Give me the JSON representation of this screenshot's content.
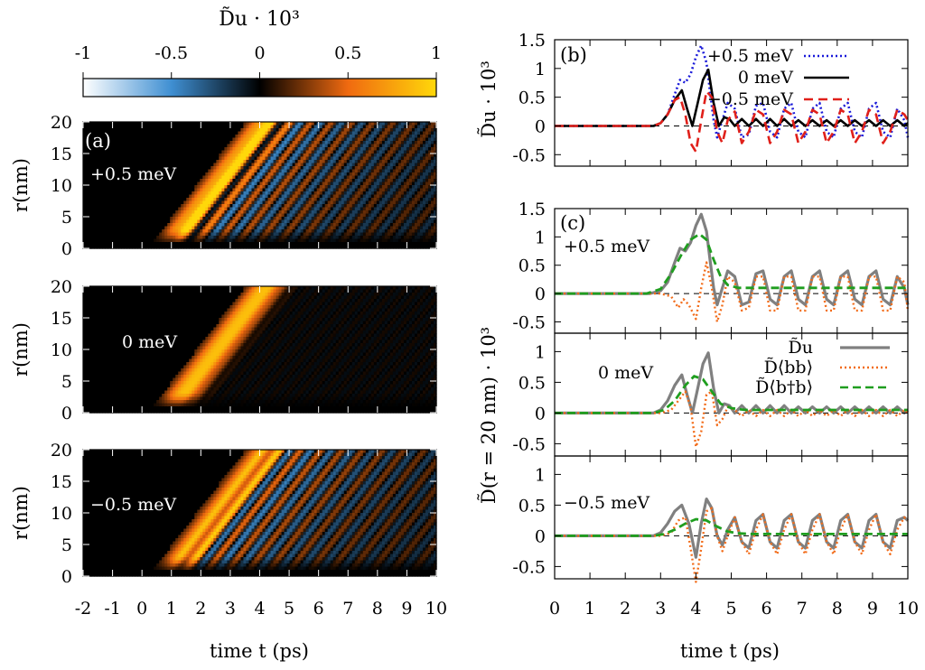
{
  "chart_data": {
    "colorbar": {
      "label": "D̃u · 10³",
      "ticks": [
        "-1",
        "-0.5",
        "0",
        "0.5",
        "1"
      ],
      "range": [
        -1,
        1
      ],
      "colors": [
        "#ffffff",
        "#3f8fd2",
        "#000000",
        "#f06a10",
        "#ffd80a"
      ]
    },
    "heatmaps": {
      "type": "heatmap",
      "panel_label": "(a)",
      "xlabel": "time t (ps)",
      "ylabel": "r(nm)",
      "xlim": [
        -2,
        10
      ],
      "ylim": [
        0,
        20
      ],
      "x_ticks": [
        "-2",
        "-1",
        "0",
        "1",
        "2",
        "3",
        "4",
        "5",
        "6",
        "7",
        "8",
        "9",
        "10"
      ],
      "y_ticks": [
        "0",
        "5",
        "10",
        "15",
        "20"
      ],
      "panels": [
        {
          "label": "+0.5 meV",
          "detuning_meV": 0.5
        },
        {
          "label": "0 meV",
          "detuning_meV": 0.0
        },
        {
          "label": "−0.5 meV",
          "detuning_meV": -0.5
        }
      ]
    },
    "panel_b": {
      "type": "line",
      "panel_label": "(b)",
      "ylabel": "D̃u · 10³",
      "xlim": [
        0,
        10
      ],
      "ylim": [
        -0.7,
        1.5
      ],
      "y_ticks": [
        "-0.5",
        "0",
        "0.5",
        "1",
        "1.5"
      ],
      "series": [
        {
          "name": "+0.5 meV",
          "color": "#1a1ad9",
          "x": [
            0,
            2.8,
            3.0,
            3.2,
            3.4,
            3.55,
            3.7,
            3.85,
            4.0,
            4.15,
            4.3,
            4.4,
            4.5,
            4.6,
            4.75,
            4.9,
            5.1,
            5.3,
            5.5,
            5.7,
            5.9,
            6.1,
            6.3,
            6.5,
            6.7,
            6.9,
            7.1,
            7.3,
            7.5,
            7.7,
            7.9,
            8.1,
            8.3,
            8.5,
            8.7,
            8.9,
            9.1,
            9.3,
            9.5,
            9.7,
            9.9,
            10.0
          ],
          "y": [
            0,
            0,
            0.05,
            0.2,
            0.55,
            0.8,
            0.75,
            0.9,
            1.2,
            1.4,
            1.1,
            0.6,
            0.1,
            -0.2,
            0.1,
            0.4,
            0.3,
            -0.2,
            -0.15,
            0.35,
            0.4,
            -0.1,
            -0.2,
            0.3,
            0.4,
            -0.1,
            -0.2,
            0.3,
            0.4,
            -0.1,
            -0.2,
            0.3,
            0.4,
            -0.1,
            -0.2,
            0.3,
            0.4,
            -0.1,
            -0.2,
            0.3,
            0.1,
            -0.2
          ]
        },
        {
          "name": "0 meV",
          "color": "#000000",
          "x": [
            0,
            2.8,
            3.0,
            3.2,
            3.4,
            3.6,
            3.75,
            3.9,
            4.05,
            4.2,
            4.35,
            4.5,
            4.65,
            4.8,
            4.95,
            5.1,
            5.3,
            5.5,
            5.7,
            5.9,
            6.1,
            6.3,
            6.5,
            6.7,
            6.9,
            7.1,
            7.3,
            7.5,
            7.7,
            7.9,
            8.1,
            8.3,
            8.5,
            8.7,
            8.9,
            9.1,
            9.3,
            9.5,
            9.7,
            9.9,
            10.0
          ],
          "y": [
            0,
            0,
            0.05,
            0.2,
            0.45,
            0.62,
            0.3,
            0.0,
            0.4,
            0.8,
            0.98,
            0.4,
            0.0,
            0.15,
            0.12,
            0.0,
            0.12,
            0.0,
            0.12,
            0.0,
            0.12,
            0.0,
            0.12,
            0.0,
            0.1,
            0.0,
            0.1,
            0.0,
            0.1,
            0.0,
            0.1,
            0.0,
            0.1,
            0.0,
            0.1,
            0.0,
            0.1,
            0.0,
            0.1,
            0.0,
            0.05
          ]
        },
        {
          "name": "−0.5 meV",
          "color": "#e0201a",
          "x": [
            0,
            2.8,
            3.0,
            3.2,
            3.4,
            3.55,
            3.7,
            3.85,
            4.0,
            4.15,
            4.3,
            4.45,
            4.6,
            4.75,
            4.9,
            5.1,
            5.3,
            5.5,
            5.7,
            5.9,
            6.1,
            6.3,
            6.5,
            6.7,
            6.9,
            7.1,
            7.3,
            7.5,
            7.7,
            7.9,
            8.1,
            8.3,
            8.5,
            8.7,
            8.9,
            9.1,
            9.3,
            9.5,
            9.7,
            9.9,
            10.0
          ],
          "y": [
            0,
            0,
            0.05,
            0.2,
            0.45,
            0.5,
            0.2,
            -0.3,
            -0.45,
            0.1,
            0.6,
            0.5,
            -0.1,
            -0.3,
            0.1,
            0.25,
            -0.3,
            -0.1,
            0.28,
            0.2,
            -0.3,
            -0.1,
            0.28,
            0.2,
            -0.3,
            -0.1,
            0.28,
            0.2,
            -0.3,
            -0.1,
            0.28,
            0.2,
            -0.3,
            -0.1,
            0.28,
            0.2,
            -0.3,
            -0.1,
            0.28,
            0.2,
            0.1
          ]
        }
      ]
    },
    "panel_c": {
      "type": "line",
      "panel_label": "(c)",
      "xlabel": "time t (ps)",
      "ylabel": "D̃(r = 20 nm) · 10³",
      "xlim": [
        0,
        10
      ],
      "x_ticks": [
        "0",
        "1",
        "2",
        "3",
        "4",
        "5",
        "6",
        "7",
        "8",
        "9",
        "10"
      ],
      "ylim": [
        -0.7,
        1.5
      ],
      "legend": [
        "D̃u",
        "D̃⟨bb⟩",
        "D̃⟨b†b⟩"
      ],
      "colors": {
        "u": "#808080",
        "bb": "#f26c1a",
        "bdb": "#1f9e1f"
      },
      "subpanels": [
        {
          "label": "+0.5 meV",
          "y_ticks": [
            "-0.5",
            "0",
            "0.5",
            "1",
            "1.5"
          ],
          "u": {
            "x": [
              0,
              2.7,
              3.0,
              3.2,
              3.4,
              3.55,
              3.7,
              3.85,
              4.0,
              4.15,
              4.3,
              4.4,
              4.5,
              4.6,
              4.75,
              4.9,
              5.1,
              5.3,
              5.5,
              5.7,
              5.9,
              6.1,
              6.3,
              6.5,
              6.7,
              6.9,
              7.1,
              7.3,
              7.5,
              7.7,
              7.9,
              8.1,
              8.3,
              8.5,
              8.7,
              8.9,
              9.1,
              9.3,
              9.5,
              9.7,
              9.9,
              10.0
            ],
            "y": [
              0,
              0,
              0.05,
              0.2,
              0.55,
              0.8,
              0.75,
              0.9,
              1.2,
              1.4,
              1.1,
              0.6,
              0.1,
              -0.2,
              0.1,
              0.4,
              0.3,
              -0.2,
              -0.15,
              0.35,
              0.4,
              -0.1,
              -0.2,
              0.3,
              0.4,
              -0.1,
              -0.2,
              0.3,
              0.4,
              -0.1,
              -0.2,
              0.3,
              0.4,
              -0.1,
              -0.2,
              0.3,
              0.4,
              -0.1,
              -0.2,
              0.3,
              0.1,
              -0.2
            ]
          },
          "bb": {
            "x": [
              0,
              3.0,
              3.3,
              3.5,
              3.65,
              3.8,
              4.0,
              4.15,
              4.3,
              4.45,
              4.6,
              4.75,
              4.9,
              5.1,
              5.3,
              5.5,
              5.7,
              5.9,
              6.1,
              6.3,
              6.5,
              6.7,
              6.9,
              7.1,
              7.3,
              7.5,
              7.7,
              7.9,
              8.1,
              8.3,
              8.5,
              8.7,
              8.9,
              9.1,
              9.3,
              9.5,
              9.7,
              9.9,
              10.0
            ],
            "y": [
              0,
              0,
              -0.05,
              -0.25,
              -0.1,
              -0.2,
              -0.45,
              0.1,
              0.55,
              0.1,
              -0.5,
              -0.2,
              0.3,
              0.2,
              -0.3,
              -0.25,
              0.3,
              0.3,
              -0.3,
              -0.3,
              0.3,
              0.3,
              -0.3,
              -0.3,
              0.3,
              0.3,
              -0.3,
              -0.3,
              0.3,
              0.3,
              -0.3,
              -0.3,
              0.3,
              0.3,
              -0.3,
              -0.3,
              0.3,
              0.2,
              -0.3
            ]
          },
          "bdb": {
            "x": [
              0,
              2.6,
              3.0,
              3.3,
              3.6,
              3.85,
              4.1,
              4.3,
              4.5,
              4.7,
              4.9,
              5.2,
              5.6,
              6.0,
              7.0,
              8.0,
              9.0,
              10.0
            ],
            "y": [
              0,
              0,
              0.08,
              0.35,
              0.7,
              0.95,
              1.05,
              0.95,
              0.6,
              0.3,
              0.15,
              0.1,
              0.1,
              0.1,
              0.1,
              0.1,
              0.1,
              0.1
            ]
          }
        },
        {
          "label": "0 meV",
          "y_ticks": [
            "-0.5",
            "0",
            "0.5",
            "1"
          ],
          "u": {
            "x": [
              0,
              2.8,
              3.0,
              3.2,
              3.4,
              3.6,
              3.75,
              3.9,
              4.05,
              4.2,
              4.35,
              4.5,
              4.65,
              4.8,
              4.95,
              5.1,
              5.3,
              5.5,
              5.7,
              5.9,
              6.1,
              6.3,
              6.5,
              6.7,
              6.9,
              7.1,
              7.3,
              7.5,
              7.7,
              7.9,
              8.1,
              8.3,
              8.5,
              8.7,
              8.9,
              9.1,
              9.3,
              9.5,
              9.7,
              9.9,
              10.0
            ],
            "y": [
              0,
              0,
              0.05,
              0.2,
              0.45,
              0.62,
              0.3,
              0.0,
              0.4,
              0.8,
              0.98,
              0.4,
              0.0,
              0.15,
              0.12,
              0.0,
              0.12,
              0.0,
              0.12,
              0.0,
              0.12,
              0.0,
              0.12,
              0.0,
              0.1,
              0.0,
              0.1,
              0.0,
              0.1,
              0.0,
              0.1,
              0.0,
              0.1,
              0.0,
              0.1,
              0.0,
              0.1,
              0.0,
              0.1,
              0.0,
              0.05
            ]
          },
          "bb": {
            "x": [
              0,
              3.0,
              3.3,
              3.5,
              3.7,
              3.85,
              4.0,
              4.15,
              4.3,
              4.45,
              4.6,
              4.75,
              4.9,
              5.1,
              5.3,
              5.5,
              5.7,
              5.9,
              6.1,
              6.3,
              6.5,
              6.7,
              6.9,
              7.1,
              7.3,
              7.5,
              7.7,
              7.9,
              8.1,
              8.3,
              8.5,
              8.7,
              8.9,
              9.1,
              9.3,
              9.5,
              9.7,
              9.9,
              10.0
            ],
            "y": [
              0,
              0,
              0.05,
              0.2,
              0.35,
              0.1,
              -0.55,
              -0.3,
              0.3,
              0.35,
              -0.2,
              -0.1,
              0.1,
              0.05,
              -0.05,
              0.05,
              -0.05,
              0.05,
              -0.05,
              0.05,
              -0.05,
              0.05,
              -0.05,
              0.05,
              -0.05,
              0.05,
              -0.05,
              0.05,
              -0.05,
              0.05,
              -0.05,
              0.05,
              -0.05,
              0.05,
              -0.05,
              0.05,
              -0.05,
              0.05,
              0.0
            ]
          },
          "bdb": {
            "x": [
              0,
              2.8,
              3.1,
              3.4,
              3.7,
              3.95,
              4.2,
              4.45,
              4.7,
              5.0,
              5.4,
              6.0,
              7.0,
              8.0,
              9.0,
              10.0
            ],
            "y": [
              0,
              0,
              0.05,
              0.2,
              0.45,
              0.6,
              0.55,
              0.35,
              0.15,
              0.08,
              0.05,
              0.05,
              0.05,
              0.05,
              0.05,
              0.05
            ]
          }
        },
        {
          "label": "−0.5 meV",
          "y_ticks": [
            "-0.5",
            "0",
            "0.5",
            "1"
          ],
          "u": {
            "x": [
              0,
              2.8,
              3.0,
              3.2,
              3.4,
              3.6,
              3.8,
              4.0,
              4.15,
              4.3,
              4.45,
              4.6,
              4.75,
              4.9,
              5.1,
              5.3,
              5.5,
              5.7,
              5.9,
              6.1,
              6.3,
              6.5,
              6.7,
              6.9,
              7.1,
              7.3,
              7.5,
              7.7,
              7.9,
              8.1,
              8.3,
              8.5,
              8.7,
              8.9,
              9.1,
              9.3,
              9.5,
              9.7,
              9.9,
              10.0
            ],
            "y": [
              0,
              0,
              0.05,
              0.2,
              0.4,
              0.5,
              0.2,
              -0.35,
              0.2,
              0.6,
              0.45,
              0.0,
              -0.15,
              0.1,
              0.3,
              -0.1,
              -0.2,
              0.25,
              0.35,
              -0.1,
              -0.2,
              0.25,
              0.35,
              -0.1,
              -0.2,
              0.25,
              0.35,
              -0.1,
              -0.2,
              0.25,
              0.35,
              -0.1,
              -0.2,
              0.25,
              0.35,
              -0.1,
              -0.2,
              0.25,
              0.3,
              0.25
            ]
          },
          "bb": {
            "x": [
              0,
              3.0,
              3.3,
              3.5,
              3.7,
              3.85,
              4.0,
              4.15,
              4.3,
              4.45,
              4.6,
              4.75,
              4.9,
              5.1,
              5.3,
              5.5,
              5.7,
              5.9,
              6.1,
              6.3,
              6.5,
              6.7,
              6.9,
              7.1,
              7.3,
              7.5,
              7.7,
              7.9,
              8.1,
              8.3,
              8.5,
              8.7,
              8.9,
              9.1,
              9.3,
              9.5,
              9.7,
              9.9,
              10.0
            ],
            "y": [
              0,
              0,
              0.05,
              0.25,
              0.3,
              -0.2,
              -0.75,
              -0.2,
              0.4,
              0.45,
              0.0,
              -0.25,
              0.0,
              0.3,
              -0.1,
              -0.3,
              0.1,
              0.35,
              -0.1,
              -0.3,
              0.1,
              0.35,
              -0.1,
              -0.3,
              0.1,
              0.35,
              -0.1,
              -0.3,
              0.1,
              0.35,
              -0.1,
              -0.3,
              0.1,
              0.35,
              -0.1,
              -0.3,
              0.1,
              0.3,
              0.25
            ]
          },
          "bdb": {
            "x": [
              0,
              2.8,
              3.1,
              3.4,
              3.7,
              4.0,
              4.3,
              4.6,
              4.9,
              5.2,
              5.6,
              6.0,
              7.0,
              8.0,
              9.0,
              10.0
            ],
            "y": [
              0,
              0,
              0.03,
              0.1,
              0.2,
              0.27,
              0.25,
              0.15,
              0.07,
              0.04,
              0.03,
              0.03,
              0.03,
              0.03,
              0.03,
              0.03
            ]
          }
        }
      ]
    }
  }
}
